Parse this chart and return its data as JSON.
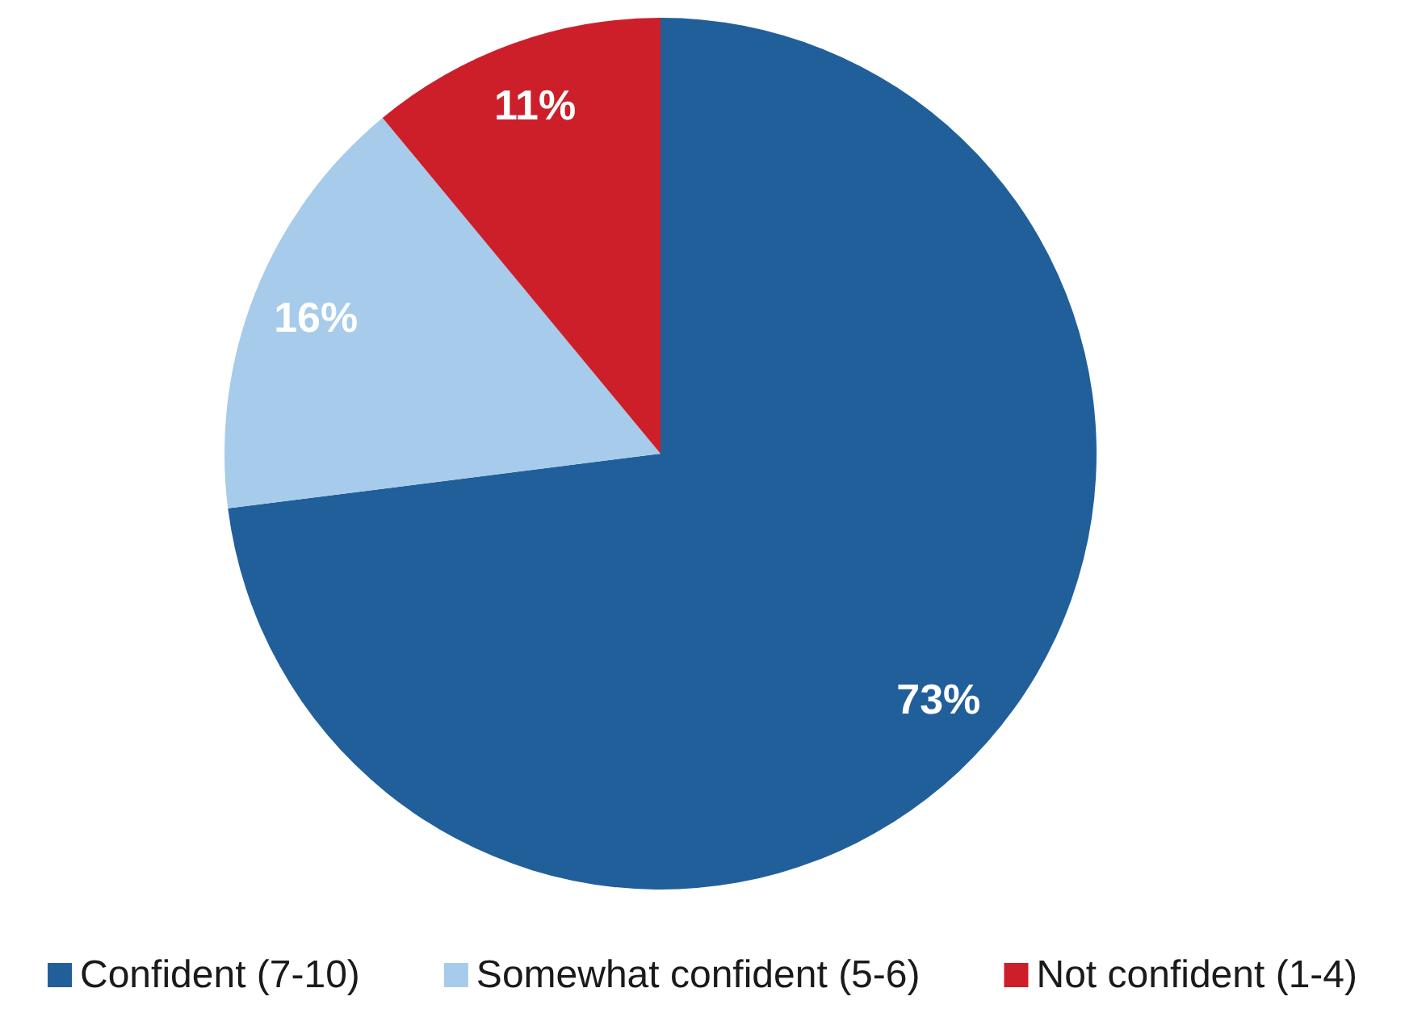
{
  "chart_data": {
    "type": "pie",
    "categories": [
      "Confident (7-10)",
      "Somewhat confident (5-6)",
      "Not confident (1-4)"
    ],
    "values": [
      73,
      16,
      11
    ],
    "value_labels": [
      "73%",
      "16%",
      "11%"
    ],
    "colors": [
      "#215f9a",
      "#a7cbea",
      "#cc1f2a"
    ],
    "legend": "bottom"
  }
}
